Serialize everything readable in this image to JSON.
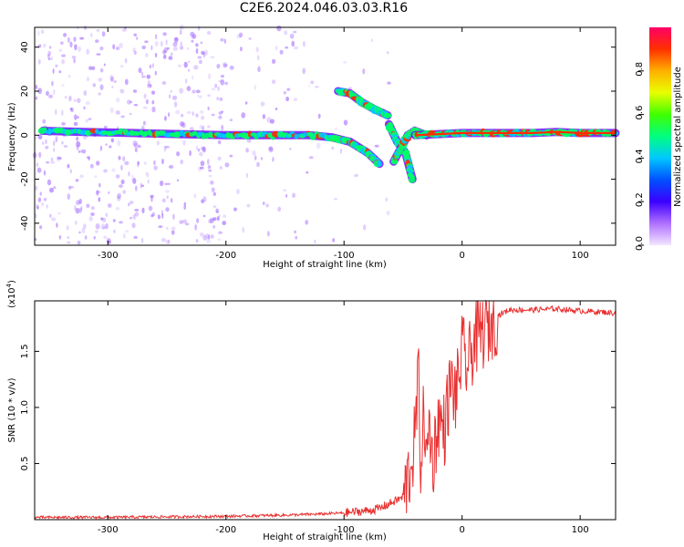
{
  "page": {
    "title": "C2E6.2024.046.03.03.R16"
  },
  "colors": {
    "axis": "#000000",
    "snr_line": "#e83030",
    "ridge_core": "#ff2a00",
    "ridge_mid": "#00ff66",
    "ridge_outer": "#6a00ff",
    "speckle": "#9b5cff"
  },
  "chart_data": [
    {
      "type": "heatmap",
      "title": "C2E6.2024.046.03.03.R16",
      "xlabel": "Height of straight line (km)",
      "ylabel": "Frequency (Hz)",
      "xlim": [
        -362,
        130
      ],
      "ylim": [
        -50,
        49
      ],
      "xticks": [
        -300,
        -200,
        -100,
        0,
        100
      ],
      "xtick_labels": [
        "-300",
        "-200",
        "-100",
        "0",
        "100"
      ],
      "yticks": [
        -40,
        -20,
        0,
        20,
        40
      ],
      "ytick_labels": [
        "-40",
        "-20",
        "0",
        "20",
        "40"
      ],
      "colorbar": {
        "label": "Normalized spectral amplitude",
        "range": [
          0,
          1
        ],
        "ticks": [
          0.0,
          0.2,
          0.4,
          0.6,
          0.8
        ],
        "tick_labels": [
          "0.0",
          "0.2",
          "0.4",
          "0.6",
          "0.8"
        ],
        "colormap": [
          "#f2e6ff",
          "#b070ff",
          "#3b00ff",
          "#0050ff",
          "#00c8ff",
          "#00ff80",
          "#40ff00",
          "#e8ff00",
          "#ffb000",
          "#ff3000",
          "#ff0066"
        ]
      },
      "features": [
        {
          "name": "main line",
          "points": [
            [
              -355,
              2
            ],
            [
              -320,
              1.5
            ],
            [
              -280,
              1
            ],
            [
              -240,
              0.5
            ],
            [
              -200,
              0
            ],
            [
              -160,
              0
            ],
            [
              -130,
              0
            ],
            [
              -110,
              -1
            ],
            [
              -95,
              -3
            ],
            [
              -80,
              -8
            ],
            [
              -70,
              -13
            ]
          ],
          "amplitude": 0.6
        },
        {
          "name": "upper branch",
          "points": [
            [
              -105,
              20
            ],
            [
              -95,
              19
            ],
            [
              -85,
              15
            ],
            [
              -75,
              12
            ],
            [
              -63,
              9
            ]
          ],
          "amplitude": 0.55
        },
        {
          "name": "converging branch",
          "points": [
            [
              -62,
              5
            ],
            [
              -55,
              -3
            ],
            [
              -48,
              -8
            ],
            [
              -42,
              -20
            ]
          ],
          "amplitude": 0.45
        },
        {
          "name": "lower crossing",
          "points": [
            [
              -58,
              -12
            ],
            [
              -52,
              -6
            ],
            [
              -46,
              0
            ],
            [
              -40,
              2
            ],
            [
              -30,
              0
            ]
          ],
          "amplitude": 0.45
        },
        {
          "name": "tail line",
          "points": [
            [
              -40,
              0
            ],
            [
              -20,
              0.5
            ],
            [
              0,
              1
            ],
            [
              20,
              1
            ],
            [
              40,
              1
            ],
            [
              60,
              1
            ],
            [
              80,
              1.5
            ],
            [
              100,
              1
            ],
            [
              130,
              1
            ]
          ],
          "amplitude": 0.9
        }
      ]
    },
    {
      "type": "line",
      "xlabel": "Height of straight line (km)",
      "ylabel": "SNR (10 * v/v)",
      "y_multiplier": "(x10^4)",
      "xlim": [
        -362,
        130
      ],
      "ylim": [
        0,
        1.95
      ],
      "xticks": [
        -300,
        -200,
        -100,
        0,
        100
      ],
      "xtick_labels": [
        "-300",
        "-200",
        "-100",
        "0",
        "100"
      ],
      "yticks": [
        0.5,
        1.0,
        1.5
      ],
      "ytick_labels": [
        "0.5",
        "1.0",
        "1.5"
      ],
      "series": [
        {
          "x": [
            -362,
            -300,
            -250,
            -200,
            -150,
            -120,
            -100,
            -80,
            -70,
            -60,
            -50,
            -45,
            -40,
            -37,
            -35,
            -32,
            -30,
            -28,
            -25,
            -20,
            -15,
            -10,
            -5,
            0,
            5,
            10,
            20,
            30,
            40,
            60,
            80,
            100,
            120,
            130
          ],
          "y": [
            0.02,
            0.02,
            0.025,
            0.03,
            0.04,
            0.05,
            0.06,
            0.08,
            0.1,
            0.15,
            0.2,
            0.4,
            0.7,
            1.3,
            0.5,
            1.0,
            0.4,
            0.9,
            0.5,
            0.9,
            0.8,
            1.2,
            1.1,
            1.5,
            1.35,
            1.6,
            1.7,
            1.82,
            1.87,
            1.87,
            1.88,
            1.86,
            1.85,
            1.84
          ]
        }
      ]
    }
  ]
}
